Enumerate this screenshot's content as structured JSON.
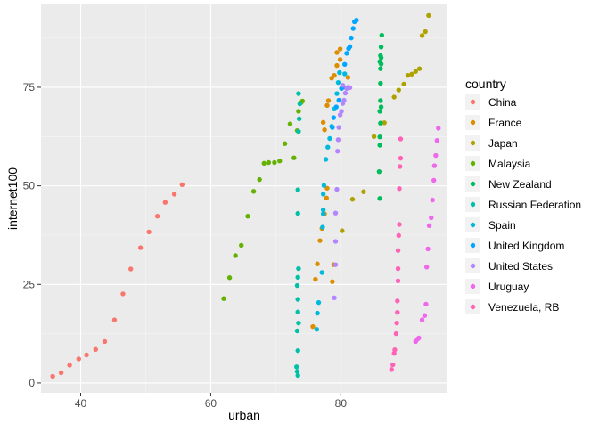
{
  "chart_data": {
    "type": "scatter",
    "xlabel": "urban",
    "ylabel": "internet100",
    "xlim": [
      33.9,
      96.4
    ],
    "ylim": [
      -2.5,
      96.0
    ],
    "x_ticks": [
      40,
      60,
      80
    ],
    "y_ticks": [
      0,
      25,
      50,
      75
    ],
    "grid": true,
    "legend_title": "country",
    "legend_position": "right",
    "series": [
      {
        "name": "China",
        "color": "#F8766D",
        "points": [
          [
            35.7,
            1.7
          ],
          [
            37.0,
            2.6
          ],
          [
            38.3,
            4.5
          ],
          [
            39.7,
            6.1
          ],
          [
            40.9,
            7.1
          ],
          [
            42.3,
            8.5
          ],
          [
            43.7,
            10.5
          ],
          [
            45.2,
            16.0
          ],
          [
            46.5,
            22.6
          ],
          [
            47.7,
            28.9
          ],
          [
            49.2,
            34.3
          ],
          [
            50.5,
            38.3
          ],
          [
            51.8,
            42.3
          ],
          [
            53.0,
            45.8
          ],
          [
            54.4,
            47.9
          ],
          [
            55.6,
            50.3
          ]
        ]
      },
      {
        "name": "France",
        "color": "#DB8E00",
        "points": [
          [
            75.7,
            14.3
          ],
          [
            76.1,
            26.3
          ],
          [
            76.4,
            30.2
          ],
          [
            76.8,
            36.1
          ],
          [
            77.1,
            39.2
          ],
          [
            77.5,
            42.9
          ],
          [
            77.8,
            46.9
          ],
          [
            77.3,
            66.1
          ],
          [
            78.1,
            71.6
          ],
          [
            78.6,
            77.3
          ],
          [
            79.4,
            80.5
          ],
          [
            79.9,
            82.0
          ],
          [
            79.9,
            84.7
          ],
          [
            77.9,
            49.4
          ],
          [
            78.7,
            25.7
          ],
          [
            78.9,
            30.0
          ],
          [
            81.1,
            77.5
          ],
          [
            77.5,
            64.2
          ],
          [
            77.9,
            70.4
          ],
          [
            79.0,
            78.0
          ],
          [
            79.4,
            83.8
          ]
        ]
      },
      {
        "name": "Japan",
        "color": "#AEA200",
        "points": [
          [
            80.2,
            38.6
          ],
          [
            81.8,
            46.6
          ],
          [
            83.5,
            48.5
          ],
          [
            85.1,
            62.5
          ],
          [
            86.7,
            66.0
          ],
          [
            88.2,
            72.5
          ],
          [
            88.9,
            74.3
          ],
          [
            89.7,
            75.8
          ],
          [
            90.3,
            78.0
          ],
          [
            90.9,
            78.3
          ],
          [
            91.5,
            79.0
          ],
          [
            92.1,
            79.7
          ],
          [
            92.5,
            88.1
          ],
          [
            93.0,
            89.1
          ],
          [
            93.5,
            93.2
          ]
        ]
      },
      {
        "name": "Malaysia",
        "color": "#64B200",
        "points": [
          [
            62.0,
            21.4
          ],
          [
            62.9,
            26.7
          ],
          [
            63.8,
            32.3
          ],
          [
            64.7,
            34.9
          ],
          [
            65.7,
            42.3
          ],
          [
            66.6,
            48.6
          ],
          [
            67.5,
            51.6
          ],
          [
            68.2,
            55.7
          ],
          [
            68.9,
            55.9
          ],
          [
            69.8,
            55.9
          ],
          [
            70.6,
            56.3
          ],
          [
            71.4,
            60.7
          ],
          [
            72.2,
            65.7
          ],
          [
            72.8,
            57.1
          ],
          [
            73.3,
            64.0
          ],
          [
            73.9,
            71.1
          ],
          [
            73.5,
            68.9
          ],
          [
            74.1,
            71.5
          ]
        ]
      },
      {
        "name": "New Zealand",
        "color": "#00BD5C",
        "points": [
          [
            86.0,
            62.4
          ],
          [
            86.0,
            60.3
          ],
          [
            86.1,
            65.9
          ],
          [
            86.0,
            68.9
          ],
          [
            86.1,
            71.6
          ],
          [
            86.1,
            76.0
          ],
          [
            86.1,
            79.7
          ],
          [
            86.2,
            80.9
          ],
          [
            86.0,
            81.5
          ],
          [
            86.2,
            82.5
          ],
          [
            86.1,
            83.0
          ],
          [
            86.2,
            85.2
          ],
          [
            86.3,
            88.2
          ],
          [
            85.9,
            53.6
          ],
          [
            86.2,
            70.0
          ],
          [
            86.0,
            46.8
          ]
        ]
      },
      {
        "name": "Russian Federation",
        "color": "#00C1A7",
        "points": [
          [
            73.4,
            1.9
          ],
          [
            73.3,
            2.9
          ],
          [
            73.2,
            4.1
          ],
          [
            73.4,
            8.2
          ],
          [
            73.3,
            13.2
          ],
          [
            73.5,
            15.2
          ],
          [
            73.4,
            18.0
          ],
          [
            73.4,
            21.2
          ],
          [
            73.3,
            24.7
          ],
          [
            73.4,
            26.8
          ],
          [
            73.5,
            29.0
          ],
          [
            73.4,
            43.0
          ],
          [
            73.4,
            49.0
          ],
          [
            73.5,
            63.8
          ],
          [
            73.6,
            67.0
          ],
          [
            73.7,
            70.8
          ],
          [
            73.5,
            73.4
          ]
        ]
      },
      {
        "name": "Spain",
        "color": "#00BADE",
        "points": [
          [
            76.3,
            13.6
          ],
          [
            76.6,
            20.4
          ],
          [
            76.4,
            17.7
          ],
          [
            77.1,
            28.0
          ],
          [
            77.2,
            39.5
          ],
          [
            77.3,
            42.9
          ],
          [
            77.3,
            43.9
          ],
          [
            77.3,
            47.9
          ],
          [
            77.4,
            50.1
          ],
          [
            77.7,
            56.7
          ],
          [
            78.0,
            59.8
          ],
          [
            78.3,
            62.0
          ],
          [
            78.6,
            65.1
          ],
          [
            79.0,
            69.5
          ],
          [
            79.4,
            73.4
          ],
          [
            79.6,
            76.2
          ],
          [
            79.8,
            78.7
          ],
          [
            80.6,
            78.4
          ]
        ]
      },
      {
        "name": "United Kingdom",
        "color": "#00A6FF",
        "points": [
          [
            78.7,
            64.8
          ],
          [
            78.9,
            67.3
          ],
          [
            79.3,
            70.0
          ],
          [
            79.7,
            71.7
          ],
          [
            80.1,
            74.7
          ],
          [
            80.4,
            75.0
          ],
          [
            80.6,
            80.8
          ],
          [
            80.9,
            83.6
          ],
          [
            81.2,
            84.8
          ],
          [
            81.4,
            85.3
          ],
          [
            81.6,
            87.5
          ],
          [
            81.9,
            89.9
          ],
          [
            82.1,
            91.6
          ],
          [
            82.4,
            92.0
          ]
        ]
      },
      {
        "name": "United States",
        "color": "#B385FF",
        "points": [
          [
            79.0,
            21.6
          ],
          [
            79.2,
            30.0
          ],
          [
            79.2,
            35.9
          ],
          [
            79.2,
            43.1
          ],
          [
            79.4,
            49.1
          ],
          [
            79.5,
            58.8
          ],
          [
            79.6,
            61.7
          ],
          [
            79.7,
            64.8
          ],
          [
            79.9,
            68.0
          ],
          [
            80.1,
            68.9
          ],
          [
            80.3,
            70.9
          ],
          [
            80.5,
            71.7
          ],
          [
            80.7,
            73.5
          ],
          [
            80.9,
            74.7
          ],
          [
            81.1,
            75.0
          ],
          [
            81.4,
            74.9
          ],
          [
            80.3,
            75.5
          ]
        ]
      },
      {
        "name": "Uruguay",
        "color": "#EF67EB",
        "points": [
          [
            91.5,
            10.5
          ],
          [
            91.8,
            11.1
          ],
          [
            92.0,
            11.4
          ],
          [
            92.5,
            16.0
          ],
          [
            92.9,
            17.1
          ],
          [
            93.1,
            20.0
          ],
          [
            93.2,
            29.4
          ],
          [
            93.4,
            34.0
          ],
          [
            93.6,
            39.9
          ],
          [
            93.9,
            41.9
          ],
          [
            94.1,
            46.4
          ],
          [
            94.3,
            51.4
          ],
          [
            94.4,
            55.1
          ],
          [
            94.6,
            57.7
          ],
          [
            94.8,
            61.5
          ],
          [
            95.0,
            64.6
          ]
        ]
      },
      {
        "name": "Venezuela, RB",
        "color": "#FF63B6",
        "points": [
          [
            87.8,
            3.4
          ],
          [
            88.0,
            4.6
          ],
          [
            88.2,
            7.5
          ],
          [
            88.3,
            8.4
          ],
          [
            88.5,
            12.5
          ],
          [
            88.6,
            15.2
          ],
          [
            88.7,
            17.9
          ],
          [
            88.7,
            20.8
          ],
          [
            88.8,
            25.9
          ],
          [
            88.8,
            29.0
          ],
          [
            88.8,
            33.6
          ],
          [
            88.9,
            37.4
          ],
          [
            89.0,
            40.2
          ],
          [
            89.0,
            49.3
          ],
          [
            89.1,
            54.9
          ],
          [
            89.2,
            57.0
          ],
          [
            89.2,
            61.9
          ]
        ]
      }
    ]
  }
}
